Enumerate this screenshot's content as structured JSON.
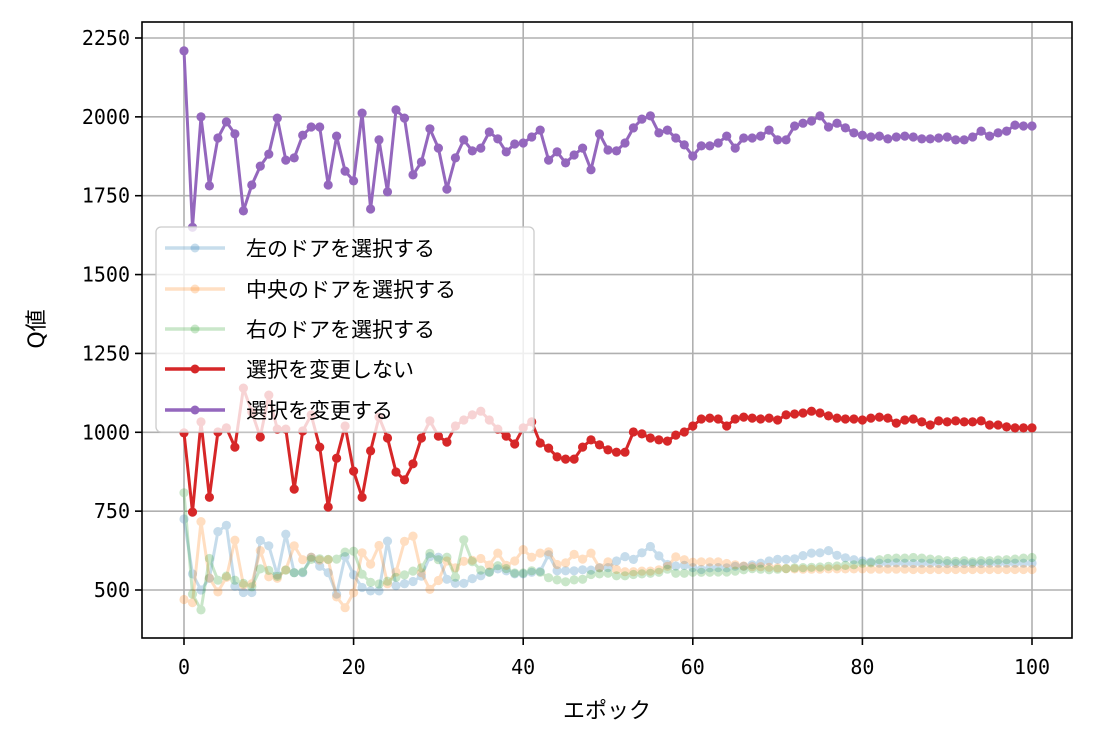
{
  "chart_data": {
    "type": "line",
    "title": "",
    "xlabel": "エポック",
    "ylabel": "Q値",
    "xlim": [
      -5,
      105
    ],
    "ylim": [
      340,
      2295
    ],
    "xticks": [
      0,
      20,
      40,
      60,
      80,
      100
    ],
    "yticks": [
      500,
      750,
      1000,
      1250,
      1500,
      1750,
      2000,
      2250
    ],
    "grid": true,
    "legend_position": "center left (upper)",
    "x": [
      0,
      1,
      2,
      3,
      4,
      5,
      6,
      7,
      8,
      9,
      10,
      11,
      12,
      13,
      14,
      15,
      16,
      17,
      18,
      19,
      20,
      21,
      22,
      23,
      24,
      25,
      26,
      27,
      28,
      29,
      30,
      31,
      32,
      33,
      34,
      35,
      36,
      37,
      38,
      39,
      40,
      41,
      42,
      43,
      44,
      45,
      46,
      47,
      48,
      49,
      50,
      51,
      52,
      53,
      54,
      55,
      56,
      57,
      58,
      59,
      60,
      61,
      62,
      63,
      64,
      65,
      66,
      67,
      68,
      69,
      70,
      71,
      72,
      73,
      74,
      75,
      76,
      77,
      78,
      79,
      80,
      81,
      82,
      83,
      84,
      85,
      86,
      87,
      88,
      89,
      90,
      91,
      92,
      93,
      94,
      95,
      96,
      97,
      98,
      99,
      100
    ],
    "series": [
      {
        "name": "左のドアを選択する",
        "color": "#1f77b4",
        "alpha": 0.25,
        "values": [
          725,
          551,
          500,
          537,
          685,
          705,
          512,
          492,
          492,
          657,
          640,
          548,
          677,
          555,
          555,
          604,
          575,
          555,
          487,
          606,
          548,
          508,
          497,
          497,
          655,
          514,
          520,
          527,
          544,
          606,
          604,
          534,
          521,
          521,
          536,
          545,
          557,
          567,
          561,
          551,
          551,
          556,
          559,
          612,
          561,
          561,
          561,
          564,
          563,
          570,
          571,
          592,
          606,
          597,
          618,
          638,
          608,
          581,
          576,
          578,
          571,
          565,
          570,
          571,
          570,
          575,
          575,
          580,
          585,
          592,
          597,
          597,
          599,
          609,
          617,
          618,
          625,
          610,
          602,
          596,
          592,
          589,
          585,
          585,
          586,
          585,
          584,
          585,
          585,
          584,
          584,
          584,
          584,
          584,
          584,
          585,
          585,
          585,
          585,
          585,
          585
        ]
      },
      {
        "name": "中央のドアを選択する",
        "color": "#ff7f0e",
        "alpha": 0.25,
        "values": [
          470,
          460,
          717,
          538,
          494,
          540,
          658,
          516,
          520,
          625,
          542,
          537,
          564,
          640,
          596,
          604,
          595,
          596,
          478,
          444,
          491,
          618,
          582,
          641,
          520,
          557,
          654,
          671,
          555,
          502,
          530,
          592,
          570,
          591,
          594,
          600,
          579,
          617,
          578,
          592,
          628,
          604,
          617,
          621,
          581,
          586,
          613,
          598,
          617,
          571,
          589,
          565,
          558,
          558,
          560,
          560,
          564,
          575,
          605,
          596,
          588,
          589,
          589,
          589,
          584,
          580,
          576,
          574,
          574,
          572,
          570,
          568,
          567,
          566,
          566,
          566,
          567,
          567,
          567,
          567,
          567,
          566,
          566,
          566,
          566,
          566,
          565,
          565,
          565,
          565,
          565,
          565,
          565,
          565,
          565,
          565,
          565,
          565,
          565,
          565,
          565
        ]
      },
      {
        "name": "右のドアを選択する",
        "color": "#2ca02c",
        "alpha": 0.25,
        "values": [
          808,
          487,
          437,
          600,
          531,
          544,
          531,
          521,
          510,
          567,
          562,
          543,
          563,
          555,
          557,
          597,
          599,
          597,
          598,
          620,
          623,
          550,
          524,
          519,
          528,
          540,
          548,
          560,
          570,
          616,
          596,
          604,
          541,
          659,
          590,
          563,
          556,
          577,
          568,
          554,
          554,
          561,
          556,
          539,
          532,
          526,
          532,
          534,
          549,
          551,
          553,
          545,
          545,
          549,
          551,
          553,
          556,
          566,
          553,
          553,
          556,
          556,
          556,
          557,
          557,
          560,
          564,
          568,
          566,
          564,
          566,
          568,
          570,
          571,
          572,
          573,
          575,
          576,
          578,
          580,
          585,
          586,
          596,
          600,
          601,
          601,
          603,
          601,
          598,
          596,
          593,
          591,
          593,
          589,
          593,
          593,
          595,
          596,
          598,
          601,
          603
        ]
      },
      {
        "name": "選択を変更しない",
        "color": "#d62728",
        "alpha": 1.0,
        "values": [
          998,
          747,
          1033,
          794,
          1001,
          1014,
          953,
          1140,
          1064,
          985,
          1118,
          1010,
          1010,
          820,
          1004,
          1055,
          953,
          763,
          918,
          1020,
          877,
          794,
          941,
          1048,
          982,
          874,
          849,
          900,
          982,
          1036,
          988,
          969,
          1020,
          1039,
          1055,
          1067,
          1039,
          1010,
          988,
          963,
          1014,
          1033,
          966,
          950,
          922,
          915,
          915,
          953,
          976,
          960,
          944,
          937,
          937,
          1001,
          995,
          982,
          976,
          972,
          991,
          1001,
          1020,
          1042,
          1045,
          1042,
          1020,
          1042,
          1048,
          1045,
          1042,
          1045,
          1039,
          1055,
          1058,
          1061,
          1067,
          1061,
          1052,
          1045,
          1042,
          1042,
          1039,
          1045,
          1048,
          1045,
          1029,
          1039,
          1042,
          1033,
          1023,
          1036,
          1033,
          1036,
          1033,
          1033,
          1036,
          1023,
          1023,
          1017,
          1014,
          1014,
          1014
        ]
      },
      {
        "name": "選択を変更する",
        "color": "#9467bd",
        "alpha": 1.0,
        "values": [
          2209,
          1650,
          2000,
          1781,
          1933,
          1984,
          1946,
          1702,
          1784,
          1844,
          1882,
          1996,
          1863,
          1870,
          1942,
          1968,
          1968,
          1784,
          1939,
          1828,
          1797,
          2012,
          1708,
          1927,
          1762,
          2022,
          1996,
          1816,
          1857,
          1962,
          1901,
          1771,
          1870,
          1927,
          1892,
          1901,
          1952,
          1930,
          1889,
          1914,
          1917,
          1936,
          1958,
          1863,
          1889,
          1854,
          1879,
          1901,
          1832,
          1946,
          1895,
          1892,
          1917,
          1965,
          1993,
          2003,
          1949,
          1958,
          1933,
          1911,
          1876,
          1908,
          1908,
          1917,
          1939,
          1901,
          1933,
          1933,
          1939,
          1958,
          1927,
          1927,
          1971,
          1980,
          1987,
          2003,
          1968,
          1980,
          1965,
          1949,
          1942,
          1936,
          1939,
          1930,
          1936,
          1939,
          1936,
          1930,
          1930,
          1933,
          1936,
          1927,
          1927,
          1936,
          1955,
          1939,
          1949,
          1955,
          1974,
          1971,
          1971
        ]
      }
    ]
  },
  "legend": {
    "items": [
      {
        "label": "左のドアを選択する",
        "color": "#1f77b4",
        "alpha": 0.25
      },
      {
        "label": "中央のドアを選択する",
        "color": "#ff7f0e",
        "alpha": 0.25
      },
      {
        "label": "右のドアを選択する",
        "color": "#2ca02c",
        "alpha": 0.25
      },
      {
        "label": "選択を変更しない",
        "color": "#d62728",
        "alpha": 1.0
      },
      {
        "label": "選択を変更する",
        "color": "#9467bd",
        "alpha": 1.0
      }
    ]
  },
  "axes": {
    "xlabel": "エポック",
    "ylabel": "Q値"
  }
}
